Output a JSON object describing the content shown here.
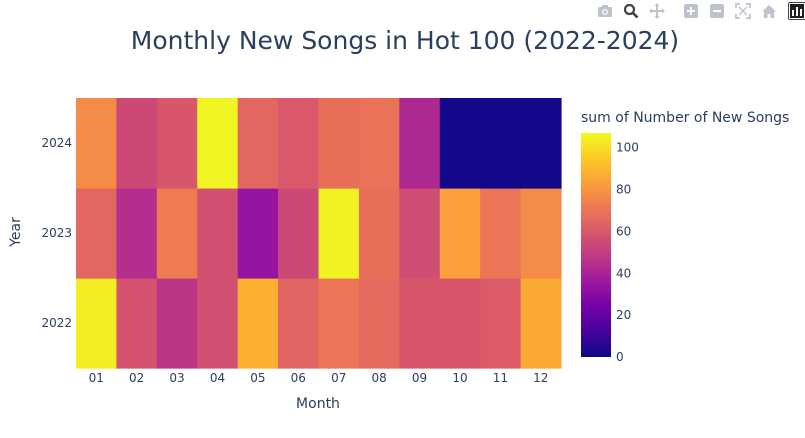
{
  "modebar": {
    "icons": [
      "camera-icon",
      "zoom-icon",
      "pan-icon",
      "zoom-in-icon",
      "zoom-out-icon",
      "autoscale-icon",
      "reset-axes-icon",
      "plotly-logo-icon"
    ]
  },
  "chart_data": {
    "type": "heatmap",
    "title": "Monthly New Songs in Hot 100 (2022-2024)",
    "xlabel": "Month",
    "ylabel": "Year",
    "x": [
      "01",
      "02",
      "03",
      "04",
      "05",
      "06",
      "07",
      "08",
      "09",
      "10",
      "11",
      "12"
    ],
    "y": [
      "2022",
      "2023",
      "2024"
    ],
    "z": [
      [
        104,
        58,
        47,
        57,
        88,
        64,
        70,
        66,
        59,
        59,
        61,
        86
      ],
      [
        65,
        44,
        72,
        57,
        34,
        54,
        105,
        68,
        56,
        83,
        70,
        77
      ],
      [
        77,
        54,
        59,
        106,
        65,
        60,
        68,
        69,
        42,
        1,
        1,
        1
      ]
    ],
    "colorscale": "Plasma",
    "zlim": [
      0,
      107
    ],
    "colorbar": {
      "title": "sum of Number of New Songs",
      "ticks": [
        "0",
        "20",
        "40",
        "60",
        "80",
        "100"
      ]
    },
    "grid": false
  }
}
